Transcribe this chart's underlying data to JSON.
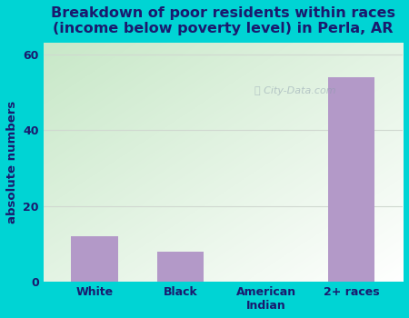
{
  "categories": [
    "White",
    "Black",
    "American\nIndian",
    "2+ races"
  ],
  "values": [
    12,
    8,
    0,
    54
  ],
  "bar_color": "#b399c8",
  "title": "Breakdown of poor residents within races\n(income below poverty level) in Perla, AR",
  "ylabel": "absolute numbers",
  "ylim": [
    0,
    63
  ],
  "yticks": [
    0,
    20,
    40,
    60
  ],
  "bg_outer": "#00d4d4",
  "bg_plot_top_left": "#c8e8c8",
  "bg_plot_bottom_right": "#e8f4f0",
  "bg_plot_white": "#ffffff",
  "title_color": "#1a1a6e",
  "label_color": "#1a1a6e",
  "tick_color": "#1a1a6e",
  "title_fontsize": 11.5,
  "label_fontsize": 9.5,
  "tick_fontsize": 9.0,
  "grid_color": "#d0d8d0"
}
